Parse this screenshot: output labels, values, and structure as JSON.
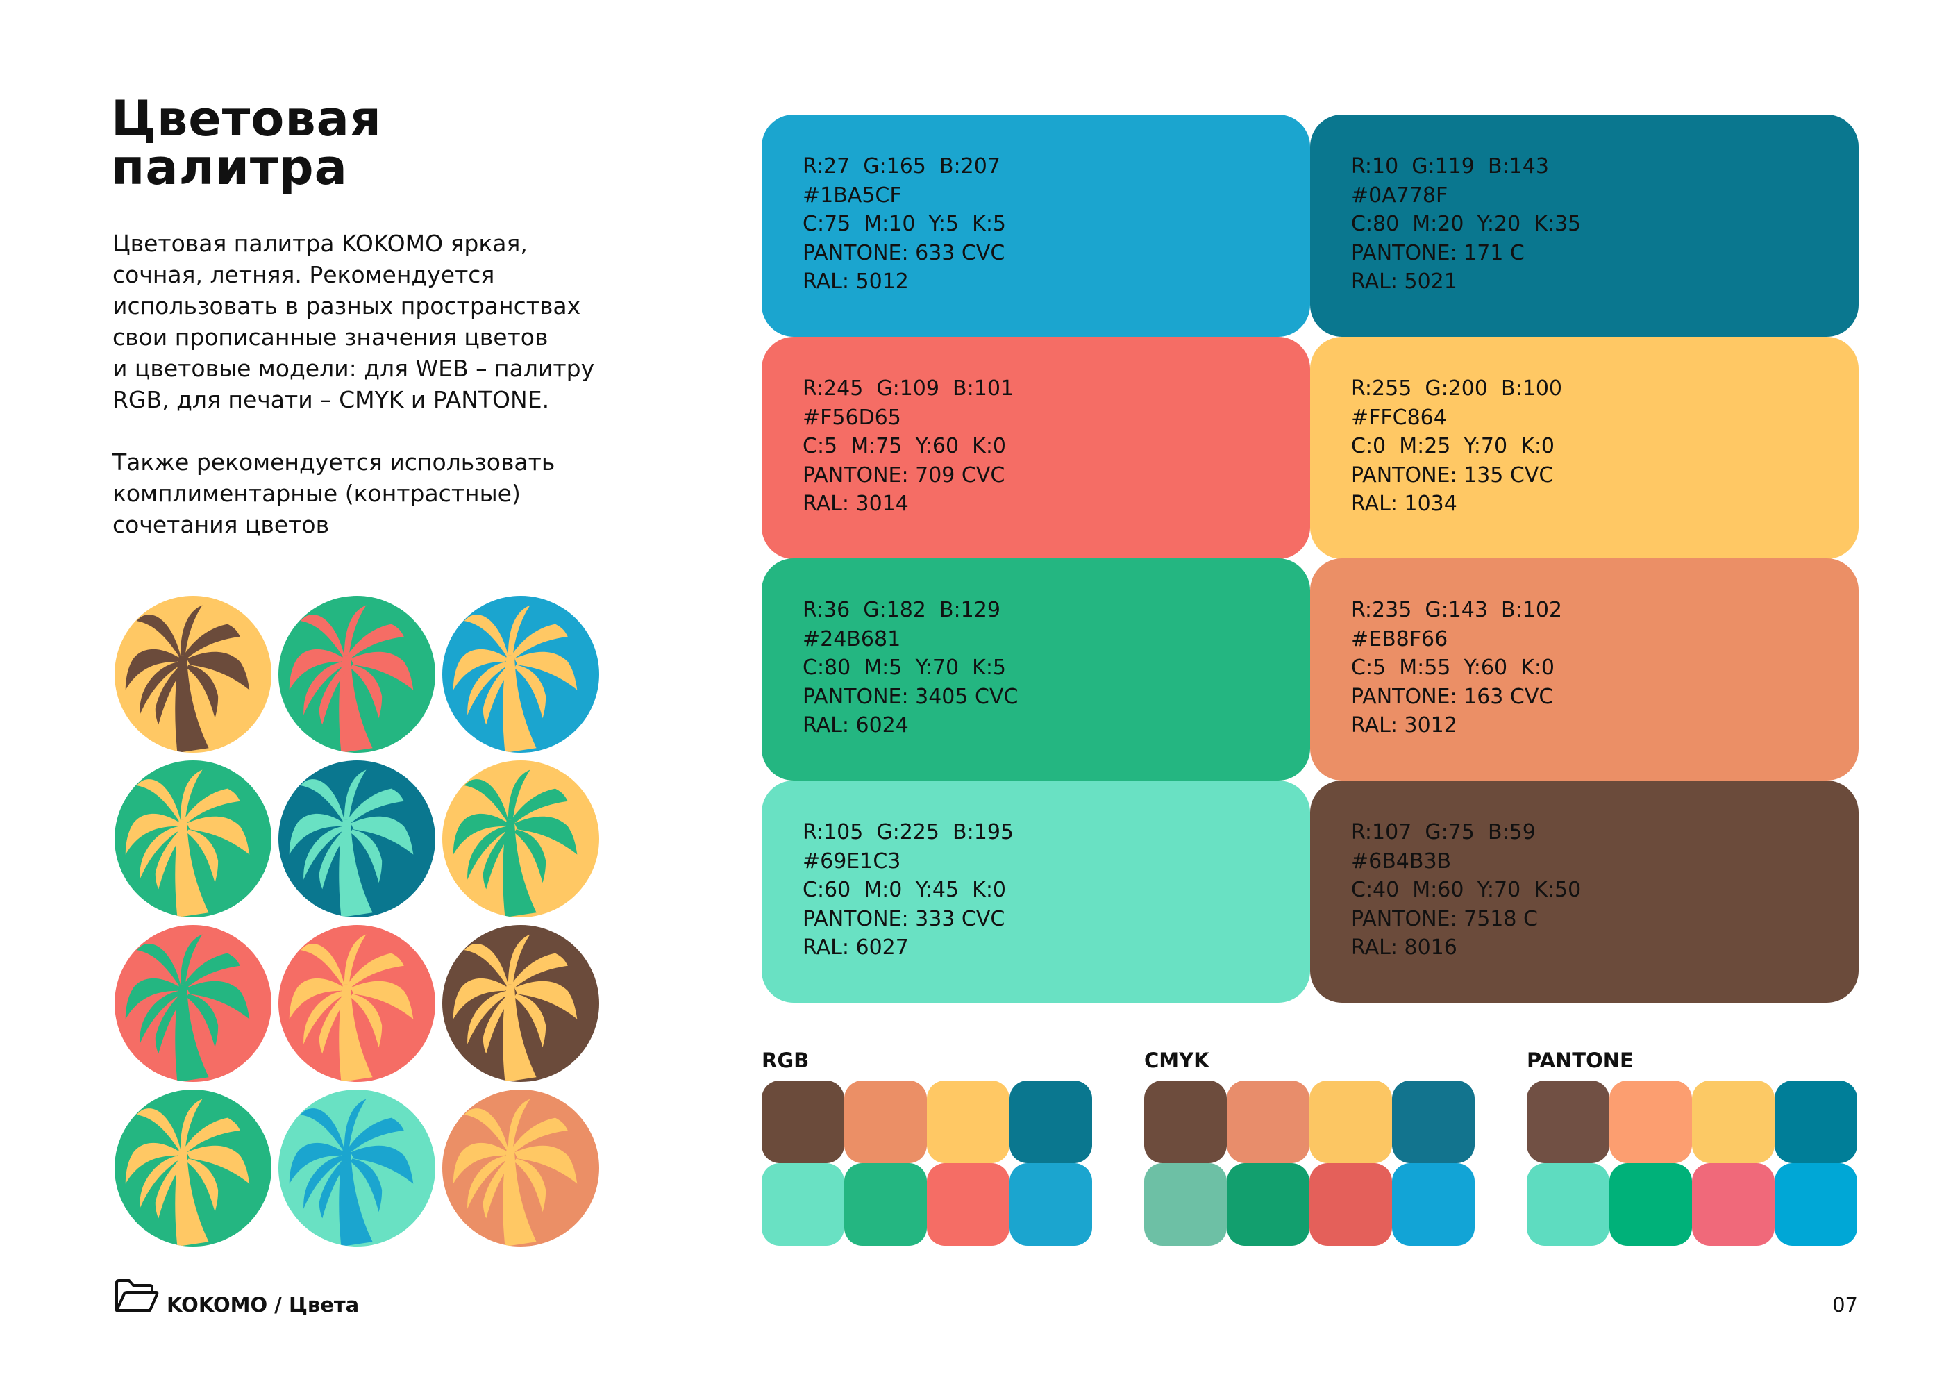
{
  "title": {
    "line1": "Цветовая",
    "line2": "палитра"
  },
  "description": {
    "paragraph1": [
      "Цветовая палитра KOKOMO яркая,",
      "сочная, летняя. Рекомендуется",
      "использовать в разных пространствах",
      "свои прописанные значения цветов",
      "и цветовые модели: для WEB – палитру",
      "RGB, для печати – CMYK и PANTONE."
    ],
    "paragraph2": [
      "Также рекомендуется использовать",
      "комплиментарные (контрастные)",
      "сочетания цветов"
    ]
  },
  "colors": [
    {
      "hex": "#1BA5CF",
      "lines": [
        "R:27  G:165  B:207",
        "#1BA5CF",
        "C:75  M:10  Y:5  K:5",
        "PANTONE: 633 CVC",
        "RAL: 5012"
      ]
    },
    {
      "hex": "#0A778F",
      "lines": [
        "R:10  G:119  B:143",
        "#0A778F",
        "C:80  M:20  Y:20  K:35",
        "PANTONE: 171 C",
        "RAL: 5021"
      ]
    },
    {
      "hex": "#F56D65",
      "lines": [
        "R:245  G:109  B:101",
        "#F56D65",
        "C:5  M:75  Y:60  K:0",
        "PANTONE: 709 CVC",
        "RAL: 3014"
      ]
    },
    {
      "hex": "#FFC864",
      "lines": [
        "R:255  G:200  B:100",
        "#FFC864",
        "C:0  M:25  Y:70  K:0",
        "PANTONE: 135 CVC",
        "RAL: 1034"
      ]
    },
    {
      "hex": "#24B681",
      "lines": [
        "R:36  G:182  B:129",
        "#24B681",
        "C:80  M:5  Y:70  K:5",
        "PANTONE: 3405 CVC",
        "RAL: 6024"
      ]
    },
    {
      "hex": "#EB8F66",
      "lines": [
        "R:235  G:143  B:102",
        "#EB8F66",
        "C:5  M:55  Y:60  K:0",
        "PANTONE: 163 CVC",
        "RAL: 3012"
      ]
    },
    {
      "hex": "#69E1C3",
      "lines": [
        "R:105  G:225  B:195",
        "#69E1C3",
        "C:60  M:0  Y:45  K:0",
        "PANTONE: 333 CVC",
        "RAL: 6027"
      ]
    },
    {
      "hex": "#6B4B3B",
      "lines": [
        "R:107  G:75  B:59",
        "#6B4B3B",
        "C:40  M:60  Y:70  K:50",
        "PANTONE: 7518 C",
        "RAL: 8016"
      ]
    }
  ],
  "palm_combinations": [
    {
      "background": "#FFC864",
      "palm": "#6B4B3B"
    },
    {
      "background": "#24B681",
      "palm": "#F56D65"
    },
    {
      "background": "#1BA5CF",
      "palm": "#FFC864"
    },
    {
      "background": "#24B681",
      "palm": "#FFC864"
    },
    {
      "background": "#0A778F",
      "palm": "#69E1C3"
    },
    {
      "background": "#FFC864",
      "palm": "#24B681"
    },
    {
      "background": "#F56D65",
      "palm": "#24B681"
    },
    {
      "background": "#F56D65",
      "palm": "#FFC864"
    },
    {
      "background": "#6B4B3B",
      "palm": "#FFC864"
    },
    {
      "background": "#24B681",
      "palm": "#FFC864"
    },
    {
      "background": "#69E1C3",
      "palm": "#1BA5CF"
    },
    {
      "background": "#EB8F66",
      "palm": "#FFC864"
    }
  ],
  "palettes": [
    {
      "label": "RGB",
      "swatches": [
        "#6B4B3B",
        "#EB8F66",
        "#FFC864",
        "#0A778F",
        "#69E1C3",
        "#24B681",
        "#F56D65",
        "#1BA5CF"
      ]
    },
    {
      "label": "CMYK",
      "swatches": [
        "#6D4C3D",
        "#E88D6B",
        "#FCC663",
        "#12748E",
        "#6DC0A5",
        "#129F6E",
        "#E4605A",
        "#12A4D6"
      ]
    },
    {
      "label": "PANTONE",
      "swatches": [
        "#715044",
        "#FC9E70",
        "#FCC965",
        "#007E98",
        "#5EDCC0",
        "#00B179",
        "#F0697A",
        "#00A7D6"
      ]
    }
  ],
  "footer": {
    "icon": "folder-icon",
    "breadcrumb": "KOKOMO / Цвета",
    "page_number": "07"
  }
}
